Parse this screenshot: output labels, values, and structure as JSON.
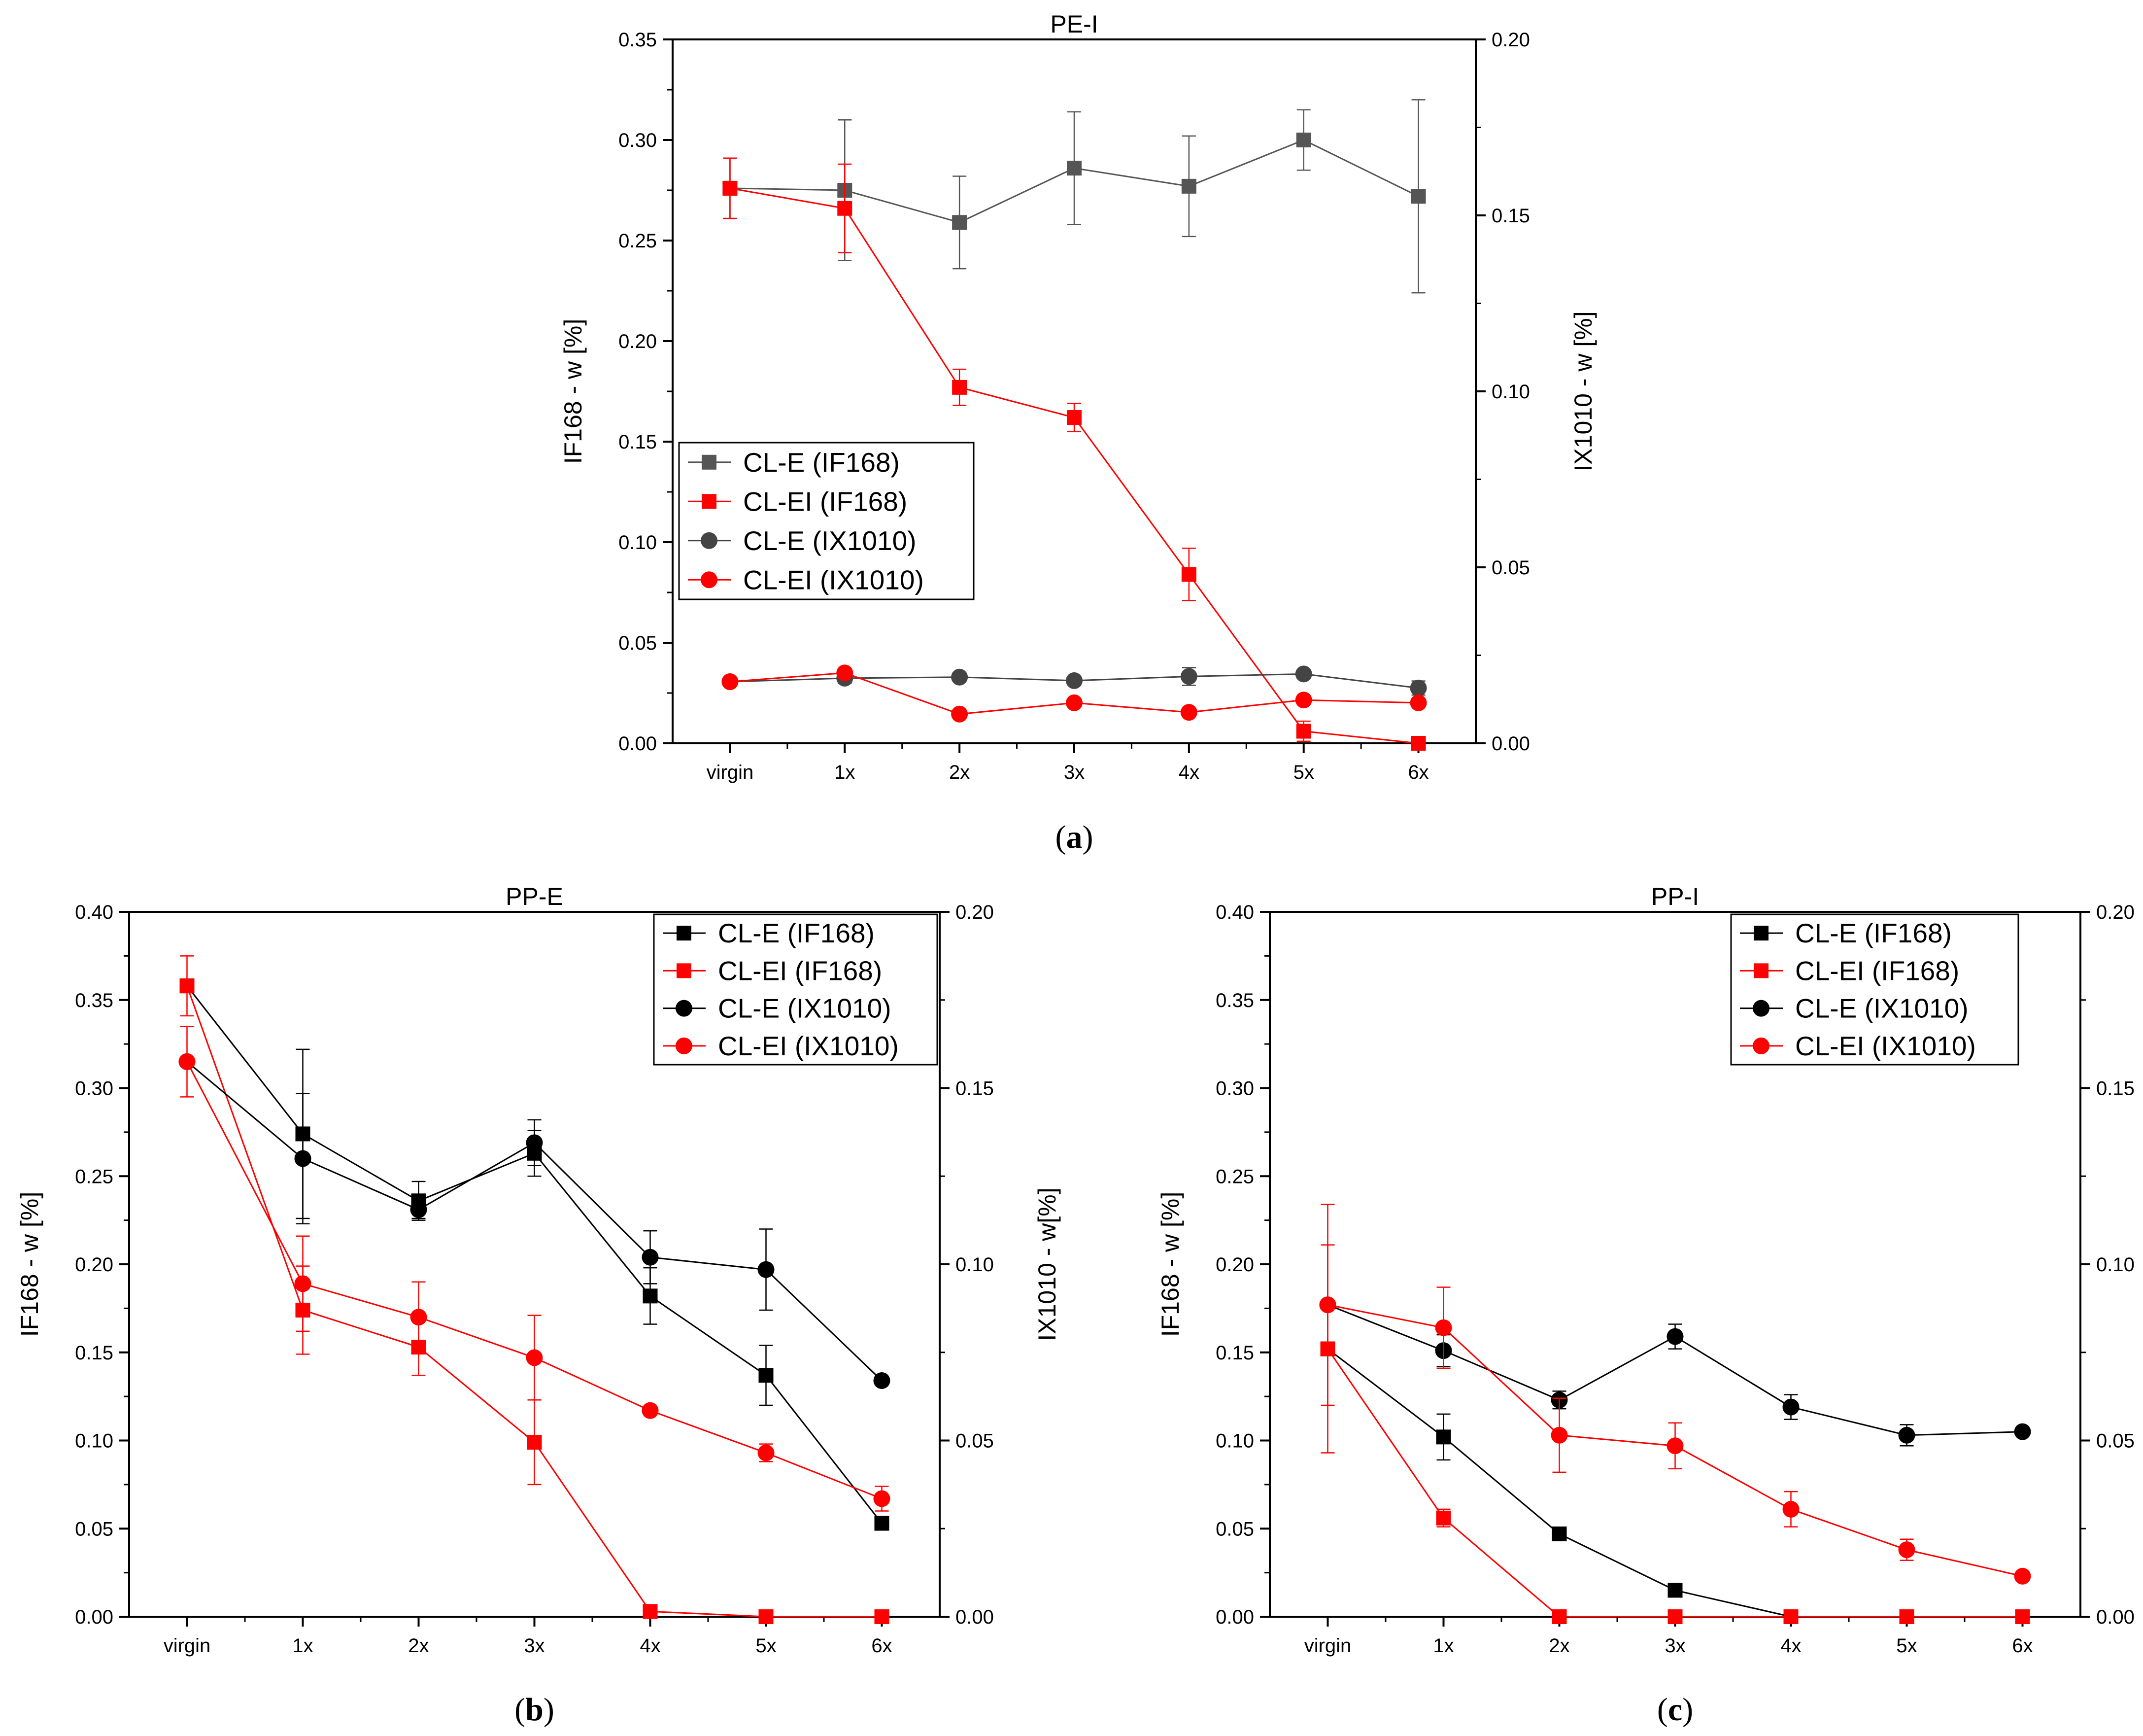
{
  "chart_data": [
    {
      "type": "line",
      "id": "a",
      "title": "PE-I",
      "caption": "a",
      "ylabel": "IF168 - w [%]",
      "y2label": "IX1010 - w [%]",
      "categories": [
        "virgin",
        "1x",
        "2x",
        "3x",
        "4x",
        "5x",
        "6x"
      ],
      "ylim": [
        0,
        0.35
      ],
      "y2lim": [
        0,
        0.2
      ],
      "yticks": [
        "0.00",
        "0.05",
        "0.10",
        "0.15",
        "0.20",
        "0.25",
        "0.30",
        "0.35"
      ],
      "y2ticks": [
        "0.00",
        "0.05",
        "0.10",
        "0.15",
        "0.20"
      ],
      "legend_position": "middle-left",
      "series": [
        {
          "name": "CL-E (IF168)",
          "axis": "left",
          "marker": "square",
          "color": "#555555",
          "values": [
            0.276,
            0.275,
            0.259,
            0.286,
            0.277,
            0.3,
            0.272
          ],
          "errors": [
            0.015,
            0.035,
            0.023,
            0.028,
            0.025,
            0.015,
            0.048
          ]
        },
        {
          "name": "CL-EI (IF168)",
          "axis": "left",
          "marker": "square",
          "color": "#ff0000",
          "values": [
            0.276,
            0.266,
            0.177,
            0.162,
            0.084,
            0.006,
            0.0
          ],
          "errors": [
            0.015,
            0.022,
            0.009,
            0.007,
            0.013,
            0.005,
            0.0
          ]
        },
        {
          "name": "CL-E (IX1010)",
          "axis": "right",
          "marker": "circle",
          "color": "#444444",
          "values": [
            0.0175,
            0.0185,
            0.0188,
            0.0178,
            0.019,
            0.0197,
            0.0157
          ],
          "errors": [
            0.0012,
            0.0015,
            0.0012,
            0.0012,
            0.0025,
            0.0012,
            0.002
          ]
        },
        {
          "name": "CL-EI (IX1010)",
          "axis": "right",
          "marker": "circle",
          "color": "#ff0000",
          "values": [
            0.0175,
            0.02,
            0.0083,
            0.0115,
            0.0088,
            0.0123,
            0.0115
          ],
          "errors": [
            0.0008,
            0.0008,
            0.0006,
            0.0008,
            0.0006,
            0.0008,
            0.0008
          ]
        }
      ]
    },
    {
      "type": "line",
      "id": "b",
      "title": "PP-E",
      "caption": "b",
      "ylabel": "IF168 - w [%]",
      "y2label": "IX1010 - w[%]",
      "categories": [
        "virgin",
        "1x",
        "2x",
        "3x",
        "4x",
        "5x",
        "6x"
      ],
      "ylim": [
        0,
        0.4
      ],
      "y2lim": [
        0,
        0.2
      ],
      "yticks": [
        "0.00",
        "0.05",
        "0.10",
        "0.15",
        "0.20",
        "0.25",
        "0.30",
        "0.35",
        "0.40"
      ],
      "y2ticks": [
        "0.00",
        "0.05",
        "0.10",
        "0.15",
        "0.20"
      ],
      "legend_position": "top-right",
      "series": [
        {
          "name": "CL-E (IF168)",
          "axis": "left",
          "marker": "square",
          "color": "#000000",
          "values": [
            0.358,
            0.274,
            0.236,
            0.263,
            0.182,
            0.137,
            0.053
          ],
          "errors": [
            0.0,
            0.048,
            0.011,
            0.013,
            0.016,
            0.017,
            0.0
          ]
        },
        {
          "name": "CL-EI (IF168)",
          "axis": "left",
          "marker": "square",
          "color": "#ff0000",
          "values": [
            0.358,
            0.174,
            0.153,
            0.099,
            0.003,
            0.0,
            0.0
          ],
          "errors": [
            0.017,
            0.025,
            0.016,
            0.024,
            0.0,
            0.0,
            0.0
          ]
        },
        {
          "name": "CL-E (IX1010)",
          "axis": "right",
          "marker": "circle",
          "color": "#000000",
          "values": [
            0.1575,
            0.13,
            0.1155,
            0.1345,
            0.102,
            0.0985,
            0.067
          ],
          "errors": [
            0.0,
            0.0185,
            0.0025,
            0.0065,
            0.0075,
            0.0115,
            0.0
          ]
        },
        {
          "name": "CL-EI (IX1010)",
          "axis": "right",
          "marker": "circle",
          "color": "#ff0000",
          "values": [
            0.1575,
            0.0945,
            0.085,
            0.0735,
            0.0585,
            0.0465,
            0.0335
          ],
          "errors": [
            0.01,
            0.0135,
            0.01,
            0.012,
            0.0,
            0.0025,
            0.0035
          ]
        }
      ]
    },
    {
      "type": "line",
      "id": "c",
      "title": "PP-I",
      "caption": "c",
      "ylabel": "IF168 - w [%]",
      "y2label": "IX1010 - w [%]",
      "categories": [
        "virgin",
        "1x",
        "2x",
        "3x",
        "4x",
        "5x",
        "6x"
      ],
      "ylim": [
        0,
        0.4
      ],
      "y2lim": [
        0,
        0.2
      ],
      "yticks": [
        "0.00",
        "0.05",
        "0.10",
        "0.15",
        "0.20",
        "0.25",
        "0.30",
        "0.35",
        "0.40"
      ],
      "y2ticks": [
        "0.00",
        "0.05",
        "0.10",
        "0.15",
        "0.20"
      ],
      "legend_position": "top-right",
      "series": [
        {
          "name": "CL-E (IF168)",
          "axis": "left",
          "marker": "square",
          "color": "#000000",
          "values": [
            0.152,
            0.102,
            0.047,
            0.015,
            0.0,
            0.0,
            0.0
          ],
          "errors": [
            0.0,
            0.013,
            0.0,
            0.0,
            0.0,
            0.0,
            0.0
          ]
        },
        {
          "name": "CL-EI (IF168)",
          "axis": "left",
          "marker": "square",
          "color": "#ff0000",
          "values": [
            0.152,
            0.056,
            0.0,
            0.0,
            0.0,
            0.0,
            0.0
          ],
          "errors": [
            0.059,
            0.005,
            0.0,
            0.0,
            0.0,
            0.0,
            0.0
          ]
        },
        {
          "name": "CL-E (IX1010)",
          "axis": "right",
          "marker": "circle",
          "color": "#000000",
          "values": [
            0.0885,
            0.0755,
            0.0615,
            0.0795,
            0.0595,
            0.0515,
            0.0525
          ],
          "errors": [
            0.0,
            0.0045,
            0.0025,
            0.0035,
            0.0035,
            0.003,
            0.0
          ]
        },
        {
          "name": "CL-EI (IX1010)",
          "axis": "right",
          "marker": "circle",
          "color": "#ff0000",
          "values": [
            0.0885,
            0.082,
            0.0515,
            0.0485,
            0.0305,
            0.019,
            0.0115
          ],
          "errors": [
            0.0285,
            0.0115,
            0.0105,
            0.0065,
            0.005,
            0.003,
            0.0
          ]
        }
      ]
    }
  ]
}
